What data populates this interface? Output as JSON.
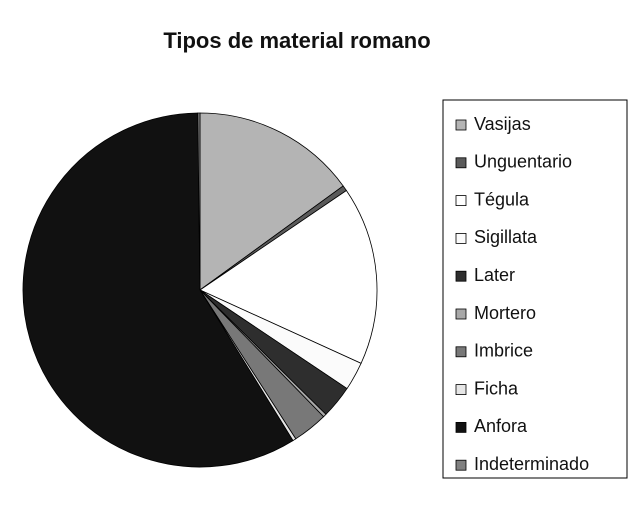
{
  "chart_data": {
    "type": "pie",
    "title": "Tipos de material romano",
    "categories": [
      "Vasijas",
      "Unguentario",
      "Tégula",
      "Sigillata",
      "Later",
      "Mortero",
      "Imbrice",
      "Ficha",
      "Anfora",
      "Indeterminado"
    ],
    "values": [
      15,
      0.5,
      16.3,
      2.6,
      3,
      0.3,
      3.2,
      0.3,
      58.6,
      0.2
    ],
    "colors": [
      "#b4b4b4",
      "#5a5a5a",
      "#ffffff",
      "#fbfbfb",
      "#2e2e2e",
      "#a8a8a8",
      "#787878",
      "#e6e6e6",
      "#111111",
      "#808080"
    ],
    "legend": "right"
  }
}
